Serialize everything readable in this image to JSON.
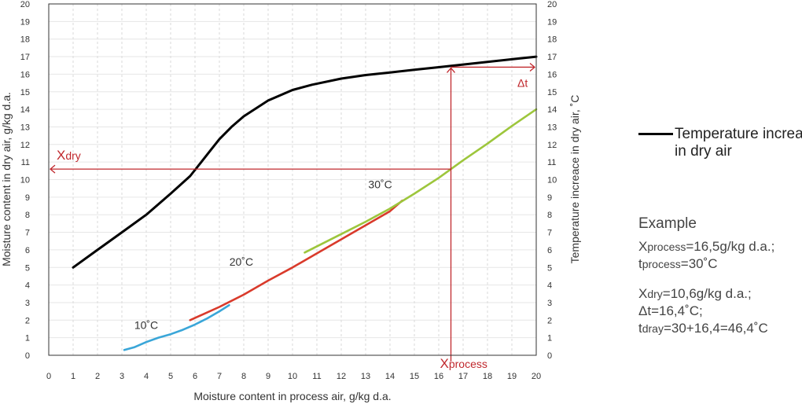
{
  "chart_data": {
    "type": "line",
    "xlabel": "Moisture content in process air, g/kg d.a.",
    "ylabel": "Moisture content in dry air, g/kg d.a.",
    "y2label": "Temperature increace in dry air, ˚C",
    "xlim": [
      0,
      20
    ],
    "ylim": [
      0,
      20
    ],
    "y2lim": [
      0,
      20
    ],
    "x_ticks": [
      0,
      1,
      2,
      3,
      4,
      5,
      6,
      7,
      8,
      9,
      10,
      11,
      12,
      13,
      14,
      15,
      16,
      17,
      18,
      19,
      20
    ],
    "y_ticks": [
      0,
      1,
      2,
      3,
      4,
      5,
      6,
      7,
      8,
      9,
      10,
      11,
      12,
      13,
      14,
      15,
      16,
      17,
      18,
      19,
      20
    ],
    "grid": "dashed vertical, light horizontal",
    "legend_position": "right",
    "series": [
      {
        "name": "Temperature increase in dry air",
        "axis": "right",
        "color": "#000000",
        "x": [
          1.0,
          2.0,
          3.0,
          4.0,
          5.0,
          5.8,
          6.2,
          6.6,
          7.0,
          7.5,
          8.0,
          9.0,
          10.0,
          10.8,
          12.0,
          13.0,
          14.0,
          15.0,
          16.0,
          17.0,
          18.0,
          19.0,
          20.0
        ],
        "y": [
          5.0,
          6.0,
          7.0,
          8.0,
          9.2,
          10.2,
          10.9,
          11.6,
          12.3,
          13.0,
          13.6,
          14.5,
          15.1,
          15.4,
          15.75,
          15.95,
          16.1,
          16.25,
          16.4,
          16.55,
          16.7,
          16.85,
          17.0
        ]
      },
      {
        "name": "10˚C",
        "axis": "left",
        "color": "#3aa6d8",
        "x": [
          3.1,
          3.5,
          4.0,
          4.5,
          5.0,
          5.5,
          6.0,
          6.5,
          7.0,
          7.4
        ],
        "y": [
          0.3,
          0.45,
          0.75,
          1.0,
          1.2,
          1.45,
          1.75,
          2.1,
          2.5,
          2.85
        ]
      },
      {
        "name": "20˚C",
        "axis": "left",
        "color": "#d93a2b",
        "x": [
          5.8,
          7.0,
          8.0,
          9.0,
          10.0,
          11.0,
          12.0,
          13.0,
          14.0,
          14.5
        ],
        "y": [
          2.0,
          2.75,
          3.45,
          4.25,
          5.0,
          5.8,
          6.6,
          7.4,
          8.2,
          8.8
        ]
      },
      {
        "name": "30˚C",
        "axis": "left",
        "color": "#9dc63c",
        "x": [
          10.5,
          12.0,
          13.0,
          14.0,
          15.0,
          16.0,
          17.0,
          18.0,
          19.0,
          20.0
        ],
        "y": [
          5.85,
          6.9,
          7.6,
          8.35,
          9.2,
          10.1,
          11.1,
          12.05,
          13.05,
          14.0
        ]
      }
    ],
    "series_labels": [
      {
        "text": "10˚C",
        "x": 4.0,
        "y": 1.5
      },
      {
        "text": "20˚C",
        "x": 7.9,
        "y": 5.1
      },
      {
        "text": "30˚C",
        "x": 13.6,
        "y": 9.5
      }
    ],
    "annotations": {
      "x_process": 16.5,
      "x_dry": 10.6,
      "t_top": 16.4,
      "x_process_label_main": "X",
      "x_process_label_sub": "process",
      "x_dry_label_main": "X",
      "x_dry_label_sub": "dry",
      "delta_t_label": "Δt",
      "color": "#c0282d"
    }
  },
  "legend": {
    "label": "Temperature increase in dry air",
    "color": "#000000"
  },
  "example": {
    "title": "Example",
    "line1_main": "X",
    "line1_sub": "process",
    "line1_rest": "=16,5g/kg d.a.;",
    "line2_main": "t",
    "line2_sub": "process",
    "line2_rest": "=30˚C",
    "line3_main": "X",
    "line3_sub": "dry",
    "line3_rest": "=10,6g/kg d.a.;",
    "line4": "Δt=16,4˚C;",
    "line5_main": "t",
    "line5_sub": "dray",
    "line5_rest": "=30+16,4=46,4˚C"
  }
}
